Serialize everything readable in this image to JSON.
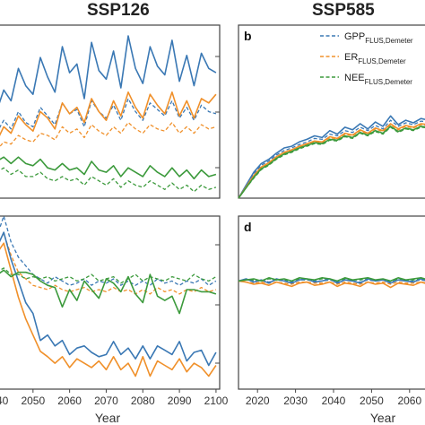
{
  "colors": {
    "gpp": "#3a78b4",
    "er": "#f0902a",
    "nee": "#3c9a3c",
    "frame": "#444444"
  },
  "chart_data": [
    {
      "panel": "a",
      "panel_label": "",
      "title": "SSP126",
      "type": "line",
      "x": [
        2040,
        2042,
        2044,
        2046,
        2048,
        2050,
        2052,
        2054,
        2056,
        2058,
        2060,
        2062,
        2064,
        2066,
        2068,
        2070,
        2072,
        2074,
        2076,
        2078,
        2080,
        2082,
        2084,
        2086,
        2088,
        2090,
        2092,
        2094,
        2096,
        2098,
        2100
      ],
      "series": [
        {
          "key": "gpp_solid",
          "color": "gpp",
          "style": "solid",
          "values": [
            12.0,
            13.0,
            12.5,
            14.0,
            13.2,
            12.8,
            14.5,
            13.6,
            12.9,
            15.0,
            13.8,
            14.2,
            12.6,
            15.2,
            13.9,
            13.5,
            14.8,
            13.1,
            15.5,
            14.0,
            13.3,
            15.0,
            14.1,
            13.7,
            15.3,
            13.4,
            14.6,
            13.2,
            14.7,
            14.0,
            13.8
          ]
        },
        {
          "key": "gpp_dashed",
          "color": "gpp",
          "style": "dashed",
          "values": [
            11.0,
            11.6,
            11.2,
            12.0,
            11.5,
            11.3,
            12.2,
            11.8,
            11.4,
            12.4,
            11.9,
            12.1,
            11.3,
            12.5,
            12.0,
            11.7,
            12.3,
            11.6,
            12.6,
            12.0,
            11.6,
            12.4,
            12.1,
            11.8,
            12.5,
            11.7,
            12.2,
            11.6,
            12.3,
            12.0,
            11.9
          ]
        },
        {
          "key": "er_solid",
          "color": "er",
          "style": "solid",
          "values": [
            10.6,
            11.3,
            11.0,
            11.8,
            11.4,
            11.1,
            12.0,
            11.7,
            11.2,
            12.4,
            11.9,
            12.2,
            11.5,
            12.6,
            12.0,
            11.6,
            12.5,
            11.8,
            12.9,
            12.2,
            11.7,
            12.8,
            12.3,
            11.9,
            12.9,
            11.8,
            12.5,
            11.7,
            12.6,
            12.4,
            12.8
          ]
        },
        {
          "key": "er_dashed",
          "color": "er",
          "style": "dashed",
          "values": [
            10.2,
            10.6,
            10.5,
            10.9,
            10.7,
            10.6,
            11.0,
            10.9,
            10.7,
            11.3,
            11.0,
            11.2,
            10.8,
            11.4,
            11.1,
            10.9,
            11.3,
            11.0,
            11.5,
            11.2,
            11.0,
            11.4,
            11.2,
            11.1,
            11.5,
            11.0,
            11.3,
            11.0,
            11.4,
            11.2,
            11.3
          ]
        },
        {
          "key": "nee_solid",
          "color": "nee",
          "style": "solid",
          "values": [
            9.7,
            9.9,
            9.6,
            9.9,
            9.6,
            9.5,
            9.8,
            9.4,
            9.3,
            9.6,
            9.3,
            9.4,
            9.1,
            9.7,
            9.3,
            9.2,
            9.5,
            9.0,
            9.4,
            9.2,
            9.0,
            9.5,
            9.2,
            9.0,
            9.4,
            9.0,
            9.3,
            8.9,
            9.3,
            9.0,
            9.1
          ]
        },
        {
          "key": "nee_dashed",
          "color": "nee",
          "style": "dashed",
          "values": [
            9.2,
            9.4,
            9.1,
            9.3,
            9.0,
            9.0,
            9.2,
            8.9,
            8.8,
            9.0,
            8.8,
            8.9,
            8.6,
            9.0,
            8.8,
            8.6,
            8.9,
            8.5,
            8.8,
            8.6,
            8.5,
            8.8,
            8.6,
            8.4,
            8.7,
            8.4,
            8.6,
            8.3,
            8.6,
            8.4,
            8.5
          ]
        }
      ],
      "xlim": [
        2040,
        2101
      ],
      "ylim": [
        8,
        16
      ]
    },
    {
      "panel": "b",
      "panel_label": "b",
      "title": "SSP585",
      "type": "line",
      "x": [
        2015,
        2017,
        2019,
        2021,
        2023,
        2025,
        2027,
        2029,
        2031,
        2033,
        2035,
        2037,
        2039,
        2041,
        2043,
        2045,
        2047,
        2049,
        2051,
        2053,
        2055,
        2057,
        2059,
        2061,
        2063,
        2065
      ],
      "series": [
        {
          "key": "gpp_solid",
          "color": "gpp",
          "style": "solid",
          "values": [
            0.0,
            1.5,
            3.0,
            4.0,
            4.5,
            5.2,
            5.8,
            6.0,
            6.5,
            6.8,
            7.2,
            7.0,
            7.8,
            7.4,
            8.2,
            7.9,
            8.6,
            8.0,
            8.8,
            8.3,
            9.5,
            8.5,
            9.0,
            8.7,
            9.2,
            9.0
          ]
        },
        {
          "key": "gpp_dashed",
          "color": "gpp",
          "style": "dashed",
          "values": [
            0.0,
            1.4,
            2.8,
            3.8,
            4.3,
            5.0,
            5.5,
            5.8,
            6.2,
            6.5,
            6.9,
            6.8,
            7.4,
            7.2,
            7.8,
            7.6,
            8.2,
            7.8,
            8.4,
            8.0,
            9.0,
            8.3,
            8.7,
            8.5,
            8.9,
            8.8
          ]
        },
        {
          "key": "er_solid",
          "color": "er",
          "style": "solid",
          "values": [
            0.0,
            1.3,
            2.6,
            3.6,
            4.1,
            4.8,
            5.3,
            5.6,
            6.0,
            6.3,
            6.6,
            6.5,
            7.1,
            6.9,
            7.5,
            7.3,
            7.9,
            7.5,
            8.1,
            7.8,
            8.6,
            8.0,
            8.4,
            8.2,
            8.6,
            8.5
          ]
        },
        {
          "key": "er_dashed",
          "color": "er",
          "style": "dashed",
          "values": [
            0.0,
            1.3,
            2.5,
            3.5,
            4.0,
            4.7,
            5.2,
            5.5,
            5.9,
            6.2,
            6.5,
            6.4,
            7.0,
            6.8,
            7.4,
            7.2,
            7.8,
            7.4,
            8.0,
            7.7,
            8.5,
            7.9,
            8.3,
            8.1,
            8.5,
            8.4
          ]
        },
        {
          "key": "nee_solid",
          "color": "nee",
          "style": "solid",
          "values": [
            0.0,
            1.2,
            2.4,
            3.4,
            3.9,
            4.6,
            5.1,
            5.4,
            5.8,
            6.1,
            6.4,
            6.3,
            6.8,
            6.7,
            7.2,
            7.0,
            7.6,
            7.3,
            7.8,
            7.5,
            8.3,
            7.7,
            8.1,
            7.9,
            8.3,
            8.2
          ]
        },
        {
          "key": "nee_dashed",
          "color": "nee",
          "style": "dashed",
          "values": [
            0.0,
            1.2,
            2.3,
            3.3,
            3.8,
            4.5,
            5.0,
            5.3,
            5.7,
            6.0,
            6.3,
            6.2,
            6.7,
            6.6,
            7.1,
            6.9,
            7.5,
            7.2,
            7.7,
            7.4,
            8.2,
            7.6,
            8.0,
            7.8,
            8.2,
            8.1
          ]
        }
      ],
      "legend": {
        "placement": "top-right",
        "entries": [
          {
            "color": "gpp",
            "base": "GPP",
            "sub": "FLUS,Demeter"
          },
          {
            "color": "er",
            "base": "ER",
            "sub": "FLUS,Demeter"
          },
          {
            "color": "nee",
            "base": "NEE",
            "sub": "FLUS,Demeter"
          }
        ]
      },
      "xlim": [
        2015,
        2065
      ],
      "ylim": [
        0,
        20
      ]
    },
    {
      "panel": "c",
      "panel_label": "",
      "title": "",
      "type": "line",
      "x": [
        2040,
        2042,
        2044,
        2046,
        2048,
        2050,
        2052,
        2054,
        2056,
        2058,
        2060,
        2062,
        2064,
        2066,
        2068,
        2070,
        2072,
        2074,
        2076,
        2078,
        2080,
        2082,
        2084,
        2086,
        2088,
        2090,
        2092,
        2094,
        2096,
        2098,
        2100
      ],
      "series": [
        {
          "key": "gpp_solid",
          "color": "gpp",
          "style": "solid",
          "values": [
            3.0,
            4.5,
            2.0,
            0.0,
            -2.0,
            -3.0,
            -5.5,
            -5.0,
            -6.0,
            -5.5,
            -6.8,
            -6.2,
            -6.0,
            -6.6,
            -7.0,
            -6.8,
            -5.6,
            -6.8,
            -6.2,
            -7.2,
            -6.0,
            -7.2,
            -6.0,
            -6.4,
            -6.8,
            -5.6,
            -7.4,
            -6.6,
            -6.4,
            -7.8,
            -6.6
          ]
        },
        {
          "key": "gpp_dashed",
          "color": "gpp",
          "style": "dashed",
          "values": [
            4.0,
            6.0,
            3.6,
            2.2,
            1.4,
            0.6,
            0.2,
            -0.2,
            0.4,
            0.0,
            -0.4,
            -0.2,
            0.2,
            -0.4,
            0.0,
            -0.2,
            0.2,
            -0.4,
            0.0,
            -0.4,
            0.0,
            -0.4,
            0.2,
            -0.2,
            0.0,
            -0.4,
            0.0,
            -0.2,
            0.2,
            -0.4,
            0.0
          ]
        },
        {
          "key": "er_solid",
          "color": "er",
          "style": "solid",
          "values": [
            2.5,
            3.5,
            1.0,
            -1.5,
            -3.5,
            -5.0,
            -6.5,
            -7.0,
            -7.6,
            -7.0,
            -8.0,
            -7.2,
            -7.6,
            -8.0,
            -7.4,
            -8.2,
            -7.0,
            -8.2,
            -7.6,
            -8.8,
            -7.0,
            -8.8,
            -7.4,
            -7.8,
            -8.2,
            -7.2,
            -8.4,
            -7.6,
            -8.0,
            -8.8,
            -7.8
          ]
        },
        {
          "key": "er_dashed",
          "color": "er",
          "style": "dashed",
          "values": [
            3.2,
            4.4,
            2.4,
            0.8,
            0.2,
            -0.4,
            -0.6,
            -0.8,
            -0.4,
            -0.8,
            -1.0,
            -0.8,
            -0.6,
            -1.0,
            -0.8,
            -1.0,
            -0.6,
            -1.0,
            -0.8,
            -1.2,
            -0.8,
            -1.2,
            -0.6,
            -1.0,
            -0.8,
            -1.2,
            -0.8,
            -1.0,
            -0.6,
            -1.0,
            -0.8
          ]
        },
        {
          "key": "nee_solid",
          "color": "nee",
          "style": "solid",
          "values": [
            0.5,
            1.0,
            0.4,
            0.8,
            0.8,
            0.6,
            0.0,
            -0.4,
            -0.6,
            -2.4,
            -0.8,
            -1.8,
            0.0,
            -0.8,
            -1.6,
            0.2,
            -0.2,
            -1.0,
            0.4,
            -1.2,
            -2.0,
            0.6,
            -1.4,
            -1.8,
            -1.4,
            -3.0,
            -0.8,
            -0.8,
            -1.0,
            -1.0,
            -1.2
          ]
        },
        {
          "key": "nee_dashed",
          "color": "nee",
          "style": "dashed",
          "values": [
            0.8,
            1.2,
            0.6,
            0.6,
            0.2,
            0.4,
            0.2,
            0.4,
            0.0,
            0.2,
            0.4,
            0.0,
            0.2,
            0.6,
            0.0,
            0.2,
            0.4,
            -0.2,
            0.2,
            0.6,
            0.0,
            0.4,
            0.2,
            0.0,
            0.4,
            0.2,
            0.0,
            0.6,
            0.2,
            0.0,
            0.4
          ]
        }
      ],
      "x_ticks": [
        "2050",
        "2060",
        "2070",
        "2080",
        "2090",
        "2100"
      ],
      "xlabel": "Year",
      "xlim": [
        2040,
        2101
      ],
      "ylim": [
        -10,
        6
      ]
    },
    {
      "panel": "d",
      "panel_label": "d",
      "title": "",
      "type": "line",
      "x": [
        2015,
        2017,
        2019,
        2021,
        2023,
        2025,
        2027,
        2029,
        2031,
        2033,
        2035,
        2037,
        2039,
        2041,
        2043,
        2045,
        2047,
        2049,
        2051,
        2053,
        2055,
        2057,
        2059,
        2061,
        2063,
        2065
      ],
      "series": [
        {
          "key": "gpp_solid",
          "color": "gpp",
          "style": "solid",
          "values": [
            0.0,
            0.2,
            -0.1,
            0.1,
            -0.2,
            0.2,
            0.0,
            -0.2,
            0.1,
            0.2,
            -0.1,
            0.0,
            0.2,
            -0.2,
            0.1,
            0.0,
            -0.2,
            0.2,
            0.0,
            0.1,
            -0.2,
            0.1,
            0.0,
            -0.1,
            0.2,
            0.0
          ]
        },
        {
          "key": "gpp_dashed",
          "color": "gpp",
          "style": "dashed",
          "values": [
            0.0,
            0.1,
            0.0,
            0.1,
            -0.1,
            0.1,
            0.0,
            -0.1,
            0.1,
            0.1,
            0.0,
            0.0,
            0.1,
            -0.1,
            0.1,
            0.0,
            -0.1,
            0.1,
            0.0,
            0.1,
            -0.1,
            0.1,
            0.0,
            0.0,
            0.1,
            0.0
          ]
        },
        {
          "key": "er_solid",
          "color": "er",
          "style": "solid",
          "values": [
            0.0,
            -0.1,
            -0.3,
            -0.2,
            -0.4,
            -0.1,
            -0.3,
            -0.5,
            -0.2,
            -0.1,
            -0.4,
            -0.3,
            -0.1,
            -0.5,
            -0.2,
            -0.3,
            -0.5,
            -0.1,
            -0.3,
            -0.2,
            -0.6,
            -0.2,
            -0.3,
            -0.4,
            -0.1,
            -0.3
          ]
        },
        {
          "key": "er_dashed",
          "color": "er",
          "style": "dashed",
          "values": [
            0.0,
            -0.1,
            -0.2,
            -0.1,
            -0.2,
            -0.1,
            -0.2,
            -0.3,
            -0.1,
            -0.1,
            -0.2,
            -0.2,
            -0.1,
            -0.3,
            -0.1,
            -0.2,
            -0.3,
            -0.1,
            -0.2,
            -0.1,
            -0.3,
            -0.1,
            -0.2,
            -0.2,
            -0.1,
            -0.2
          ]
        },
        {
          "key": "nee_solid",
          "color": "nee",
          "style": "solid",
          "values": [
            0.0,
            0.1,
            0.2,
            0.0,
            0.3,
            0.1,
            0.2,
            0.0,
            0.3,
            0.2,
            0.1,
            0.3,
            0.2,
            0.0,
            0.3,
            0.1,
            0.2,
            0.3,
            0.1,
            0.2,
            0.0,
            0.3,
            0.1,
            0.2,
            0.3,
            0.1
          ]
        },
        {
          "key": "nee_dashed",
          "color": "nee",
          "style": "dashed",
          "values": [
            0.0,
            0.1,
            0.1,
            0.0,
            0.2,
            0.1,
            0.1,
            0.0,
            0.2,
            0.1,
            0.1,
            0.2,
            0.1,
            0.0,
            0.2,
            0.1,
            0.1,
            0.2,
            0.1,
            0.1,
            0.0,
            0.2,
            0.1,
            0.1,
            0.2,
            0.1
          ]
        }
      ],
      "x_ticks": [
        "2020",
        "2030",
        "2040",
        "2050",
        "2060"
      ],
      "xlabel": "Year",
      "xlim": [
        2015,
        2065
      ],
      "ylim": [
        -10,
        6
      ]
    }
  ]
}
